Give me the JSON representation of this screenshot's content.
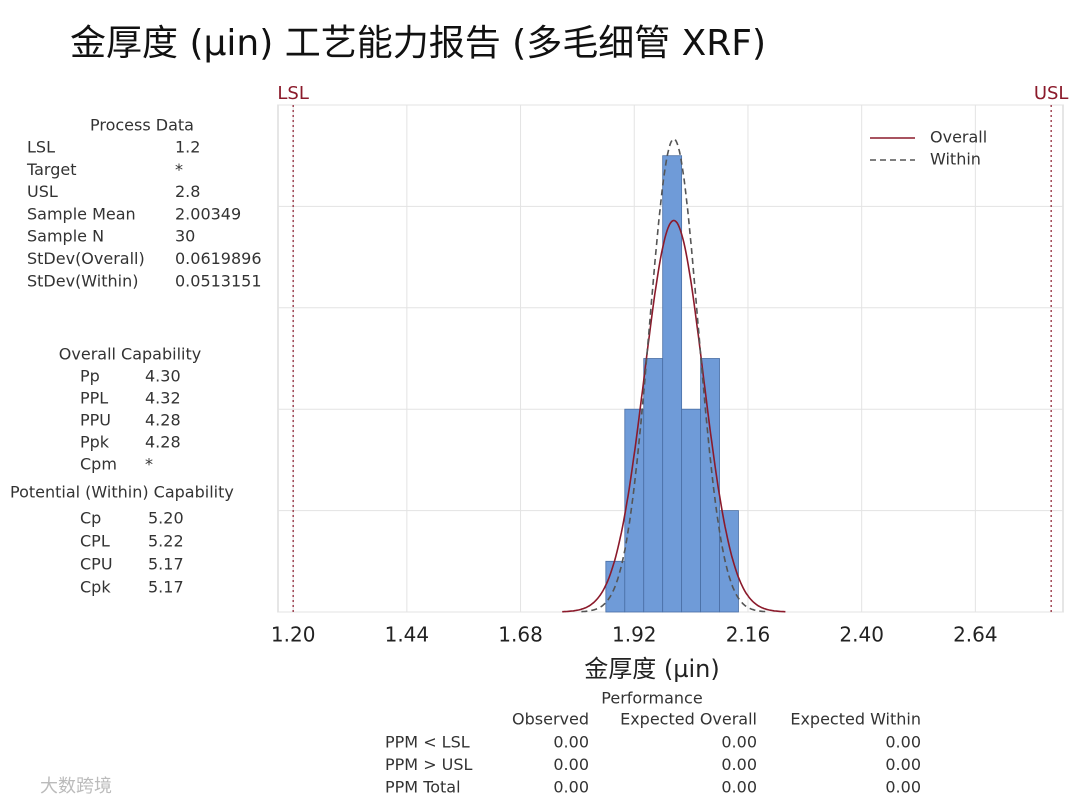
{
  "title": "金厚度 (µin) 工艺能力报告 (多毛细管 XRF)",
  "process_data": {
    "title": "Process Data",
    "rows": [
      {
        "label": "LSL",
        "value": 1.2
      },
      {
        "label": "Target",
        "value": "*"
      },
      {
        "label": "USL",
        "value": 2.8
      },
      {
        "label": "Sample Mean",
        "value": 2.00349
      },
      {
        "label": "Sample N",
        "value": 30
      },
      {
        "label": "StDev(Overall)",
        "value": 0.0619896
      },
      {
        "label": "StDev(Within)",
        "value": 0.0513151
      }
    ]
  },
  "overall_capability": {
    "title": "Overall Capability",
    "rows": [
      {
        "label": "Pp",
        "value": "4.30"
      },
      {
        "label": "PPL",
        "value": "4.32"
      },
      {
        "label": "PPU",
        "value": "4.28"
      },
      {
        "label": "Ppk",
        "value": "4.28"
      },
      {
        "label": "Cpm",
        "value": "*"
      }
    ]
  },
  "potential_capability": {
    "title": "Potential (Within) Capability",
    "rows": [
      {
        "label": "Cp",
        "value": "5.20"
      },
      {
        "label": "CPL",
        "value": "5.22"
      },
      {
        "label": "CPU",
        "value": "5.17"
      },
      {
        "label": "Cpk",
        "value": "5.17"
      }
    ]
  },
  "chart_data": {
    "type": "histogram",
    "xlabel": "金厚度 (µin)",
    "bins": [
      1.86,
      1.9,
      1.94,
      1.98,
      2.02,
      2.06,
      2.1,
      2.14
    ],
    "counts": [
      1,
      4,
      5,
      9,
      4,
      5,
      2
    ],
    "color": "#6f9bd8",
    "xlim": [
      1.168,
      2.825
    ],
    "xticks": [
      {
        "value": 1.2,
        "label": "1.20"
      },
      {
        "value": 1.44,
        "label": "1.44"
      },
      {
        "value": 1.68,
        "label": "1.68"
      },
      {
        "value": 1.92,
        "label": "1.92"
      },
      {
        "value": 2.16,
        "label": "2.16"
      },
      {
        "value": 2.4,
        "label": "2.40"
      },
      {
        "value": 2.64,
        "label": "2.64"
      }
    ],
    "ylim": [
      0,
      10
    ],
    "yticks": [
      0,
      2,
      4,
      6,
      8,
      10
    ],
    "grid": true,
    "spec_color": "#8b1a2b",
    "legend_position": "upper right",
    "curves": [
      {
        "name": "Overall",
        "color": "#8b1a2b",
        "dashed": false
      },
      {
        "name": "Within",
        "color": "#555555",
        "dashed": true
      }
    ]
  },
  "performance": {
    "title": "Performance",
    "columns": [
      "Observed",
      "Expected Overall",
      "Expected Within"
    ],
    "rows": [
      {
        "label": "PPM < LSL",
        "values": [
          "0.00",
          "0.00",
          "0.00"
        ]
      },
      {
        "label": "PPM > USL",
        "values": [
          "0.00",
          "0.00",
          "0.00"
        ]
      },
      {
        "label": "PPM Total",
        "values": [
          "0.00",
          "0.00",
          "0.00"
        ]
      }
    ]
  },
  "watermark": "大数跨境"
}
